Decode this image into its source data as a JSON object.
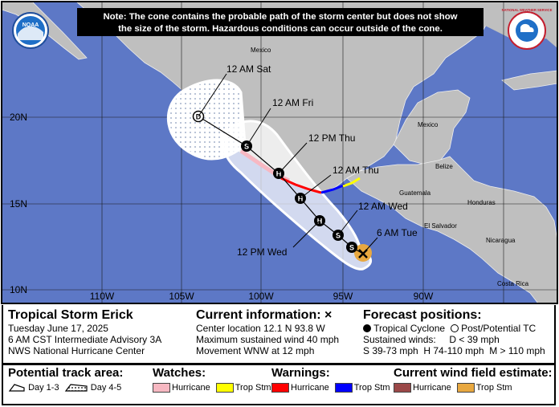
{
  "note": {
    "line1": "Note: The cone contains the probable path of the storm center but does not show",
    "line2": "the size of the storm. Hazardous conditions can occur outside of the cone."
  },
  "logos": {
    "noaa": "NOAA",
    "nws": "NATIONAL WEATHER SERVICE"
  },
  "map": {
    "lat_labels": [
      "20N",
      "15N",
      "10N"
    ],
    "lon_labels": [
      "110W",
      "105W",
      "100W",
      "95W",
      "90W"
    ],
    "country_labels": [
      "Mexico",
      "Mexico",
      "Belize",
      "Guatemala",
      "Honduras",
      "El Salvador",
      "Nicaragua",
      "Costa Rica"
    ],
    "track_points": [
      {
        "label": "6 AM Tue",
        "symbol": "x"
      },
      {
        "label": "",
        "symbol": "S"
      },
      {
        "label": "12 AM Wed",
        "symbol": "S"
      },
      {
        "label": "12 PM Wed",
        "symbol": "H"
      },
      {
        "label": "12 AM Thu",
        "symbol": "H"
      },
      {
        "label": "12 PM Thu",
        "symbol": "H"
      },
      {
        "label": "12 AM Fri",
        "symbol": "S"
      },
      {
        "label": "12 AM Sat",
        "symbol": "D"
      }
    ]
  },
  "info": {
    "storm_name": "Tropical Storm Erick",
    "date": "Tuesday June 17, 2025",
    "advisory": "6 AM CST Intermediate Advisory 3A",
    "center": "NWS National Hurricane Center",
    "current_title": "Current information:",
    "current_mark": "×",
    "location": "Center location 12.1 N 93.8 W",
    "wind": "Maximum sustained wind 40 mph",
    "movement": "Movement WNW at 12 mph",
    "forecast_title": "Forecast positions:",
    "tc_label": "Tropical Cyclone",
    "post_label": "Post/Potential TC",
    "sustained": "Sustained winds:",
    "d_label": "D < 39 mph",
    "s_line": "S 39-73 mph  H 74-110 mph  M > 110 mph"
  },
  "legend": {
    "track_title": "Potential track area:",
    "day13": "Day 1-3",
    "day45": "Day 4-5",
    "watches_title": "Watches:",
    "warnings_title": "Warnings:",
    "wind_title": "Current wind field estimate:",
    "hurricane": "Hurricane",
    "trop_stm": "Trop Stm"
  },
  "colors": {
    "water": "#5d78c6",
    "land": "#bfbfbf",
    "cone_inner": "#ffffff",
    "watch_hurricane": "#f7b8c2",
    "watch_trop_stm": "#ffff00",
    "warn_hurricane": "#ff0000",
    "warn_trop_stm": "#0000ff",
    "wind_hurricane": "#9b4848",
    "wind_trop_stm": "#e8a840"
  }
}
